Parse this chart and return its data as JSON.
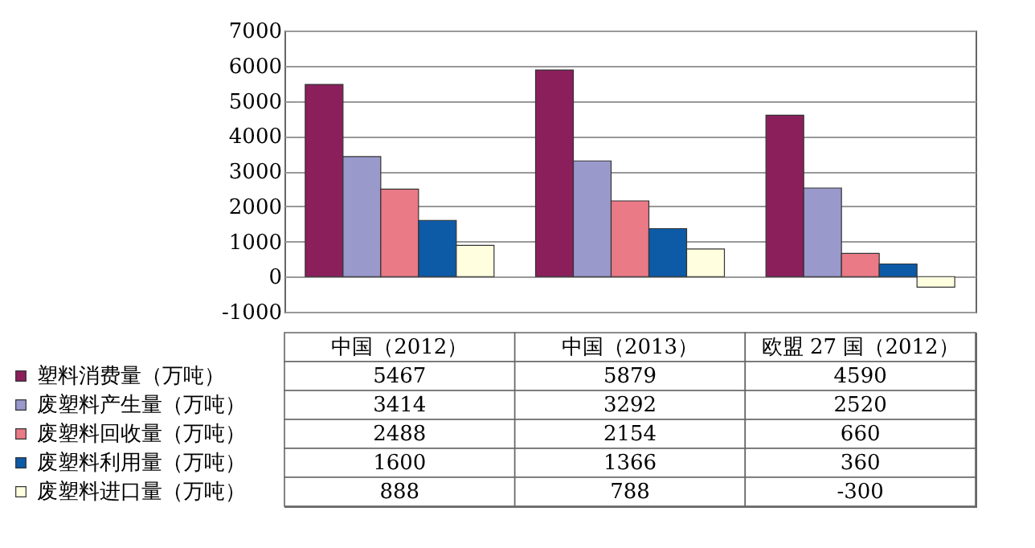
{
  "chart_data": {
    "type": "bar",
    "categories": [
      "中国（2012）",
      "中国（2013）",
      "欧盟 27 国（2012）"
    ],
    "series": [
      {
        "name": "塑料消费量（万吨）",
        "color": "#8b1f5c",
        "values": [
          5467,
          5879,
          4590
        ]
      },
      {
        "name": "废塑料产生量（万吨）",
        "color": "#9a99cc",
        "values": [
          3414,
          3292,
          2520
        ]
      },
      {
        "name": "废塑料回收量（万吨）",
        "color": "#e97a86",
        "values": [
          2488,
          2154,
          660
        ]
      },
      {
        "name": "废塑料利用量（万吨）",
        "color": "#0d5aa7",
        "values": [
          1600,
          1366,
          360
        ]
      },
      {
        "name": "废塑料进口量（万吨）",
        "color": "#ffffe0",
        "values": [
          888,
          788,
          -300
        ]
      }
    ],
    "ylim": [
      -1000,
      7000
    ],
    "yticks": [
      -1000,
      0,
      1000,
      2000,
      3000,
      4000,
      5000,
      6000,
      7000
    ],
    "grid": "y",
    "legend": "bottom left",
    "data_labels": true
  }
}
